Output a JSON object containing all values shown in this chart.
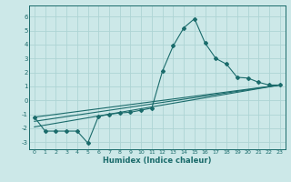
{
  "xlabel": "Humidex (Indice chaleur)",
  "ylabel": "",
  "background_color": "#cce8e8",
  "grid_color": "#aed4d4",
  "line_color": "#1a6b6b",
  "xlim": [
    -0.5,
    23.5
  ],
  "ylim": [
    -3.5,
    6.8
  ],
  "yticks": [
    -3,
    -2,
    -1,
    0,
    1,
    2,
    3,
    4,
    5,
    6
  ],
  "xticks": [
    0,
    1,
    2,
    3,
    4,
    5,
    6,
    7,
    8,
    9,
    10,
    11,
    12,
    13,
    14,
    15,
    16,
    17,
    18,
    19,
    20,
    21,
    22,
    23
  ],
  "series1_x": [
    0,
    1,
    2,
    3,
    4,
    5,
    6,
    7,
    8,
    9,
    10,
    11,
    12,
    13,
    14,
    15,
    16,
    17,
    18,
    19,
    20,
    21,
    22,
    23
  ],
  "series1_y": [
    -1.2,
    -2.2,
    -2.2,
    -2.2,
    -2.2,
    -3.05,
    -1.15,
    -1.0,
    -0.9,
    -0.85,
    -0.7,
    -0.55,
    2.1,
    3.9,
    5.2,
    5.85,
    4.1,
    3.0,
    2.6,
    1.65,
    1.6,
    1.3,
    1.1,
    1.1
  ],
  "series2_x": [
    0,
    23
  ],
  "series2_y": [
    -1.2,
    1.1
  ],
  "series3_x": [
    0,
    23
  ],
  "series3_y": [
    -1.5,
    1.1
  ],
  "series4_x": [
    0,
    23
  ],
  "series4_y": [
    -1.9,
    1.1
  ]
}
